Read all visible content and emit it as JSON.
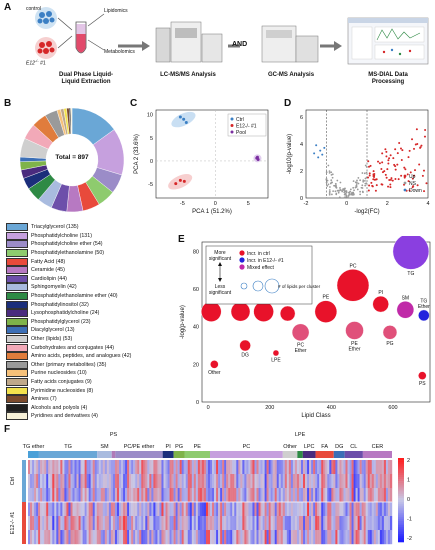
{
  "panelA": {
    "letter": "A",
    "control": "control",
    "mutant": "E12",
    "mutant_sup": "-/-",
    "mutant_suffix": "#1",
    "lipidomics": "Lipidomics",
    "metabolomics": "Metabolomics",
    "step1": "Dual Phase Liquid-Liquid Extraction",
    "step2": "LC-MS/MS Analysis",
    "and": "AND",
    "step3": "GC-MS Analysis",
    "step4": "MS-DIAL Data Processing"
  },
  "panelB": {
    "letter": "B",
    "total": "Total = 897",
    "classes": [
      {
        "label": "Triacylglycerol (135)",
        "count": 135,
        "color": "#6aa7d6"
      },
      {
        "label": "Phosphatidylcholine (131)",
        "count": 131,
        "color": "#c6a0de"
      },
      {
        "label": "Phosphatidylcholine ether (54)",
        "count": 54,
        "color": "#9b8cc8"
      },
      {
        "label": "Phosphatidylethanolamine (50)",
        "count": 50,
        "color": "#8ecb6e"
      },
      {
        "label": "Fatty Acid (48)",
        "count": 48,
        "color": "#e84a3b"
      },
      {
        "label": "Ceramide (45)",
        "count": 45,
        "color": "#b779c2"
      },
      {
        "label": "Cardiolipin (44)",
        "count": 44,
        "color": "#6d4faa"
      },
      {
        "label": "Sphingomyelin (42)",
        "count": 42,
        "color": "#a9bbdf"
      },
      {
        "label": "Phosphatidylethanolamine ether (40)",
        "count": 40,
        "color": "#2e8a45"
      },
      {
        "label": "Phosphatidylinositol (32)",
        "count": 32,
        "color": "#1b2e7a"
      },
      {
        "label": "Lysophosphatidylcholine (24)",
        "count": 24,
        "color": "#4a2b7e"
      },
      {
        "label": "Phosphatidylglycerol (23)",
        "count": 23,
        "color": "#7fb34a"
      },
      {
        "label": "Diacylglycerol (13)",
        "count": 13,
        "color": "#3c6fb6"
      },
      {
        "label": "Other (lipids) (53)",
        "count": 53,
        "color": "#cfcfcf"
      },
      {
        "label": "Carbohydrates and conjugates (44)",
        "count": 44,
        "color": "#f2a9b8"
      },
      {
        "label": "Amino acids, peptides, and analogues (42)",
        "count": 42,
        "color": "#e07c3c"
      },
      {
        "label": "Other (primary metabolites) (35)",
        "count": 35,
        "color": "#9a9a9a"
      },
      {
        "label": "Purine nucleosides (10)",
        "count": 10,
        "color": "#f6c17a"
      },
      {
        "label": "Fatty acids conjugates (9)",
        "count": 9,
        "color": "#bfa88a"
      },
      {
        "label": "Pyrimidine nucleosides (8)",
        "count": 8,
        "color": "#f3e24d"
      },
      {
        "label": "Amines (7)",
        "count": 7,
        "color": "#7b4a2c"
      },
      {
        "label": "Alcohols and polyols (4)",
        "count": 4,
        "color": "#1e1e1e"
      },
      {
        "label": "Pyridines and derivatives (4)",
        "count": 4,
        "color": "#f7f1d8"
      }
    ]
  },
  "panelC": {
    "letter": "C",
    "xlabel": "PCA 1 (51.2%)",
    "ylabel": "PCA 2 (33.6%)",
    "legend": [
      {
        "label": "Ctrl",
        "color": "#3b7fc4"
      },
      {
        "label": "E12-/- #1",
        "color": "#d62728"
      },
      {
        "label": "Pool",
        "color": "#7b2fa0"
      }
    ],
    "xticks": [
      "-5",
      "0",
      "5"
    ],
    "yticks": [
      "10",
      "5",
      "0",
      "-5"
    ],
    "chart_data": {
      "type": "scatter",
      "xlabel": "PCA 1 (51.2%)",
      "ylabel": "PCA 2 (33.6%)",
      "xlim": [
        -9,
        8
      ],
      "ylim": [
        -8,
        11
      ],
      "series": [
        {
          "name": "Ctrl",
          "color": "#3b7fc4",
          "points": [
            [
              -5.3,
              9.5
            ],
            [
              -4.8,
              9.0
            ],
            [
              -4.4,
              8.3
            ]
          ]
        },
        {
          "name": "E12-/- #1",
          "color": "#d62728",
          "points": [
            [
              -6.0,
              -4.9
            ],
            [
              -5.3,
              -4.2
            ],
            [
              -4.7,
              -4.4
            ]
          ]
        },
        {
          "name": "Pool",
          "color": "#7b2fa0",
          "points": [
            [
              6.3,
              0.6
            ],
            [
              6.5,
              0.3
            ],
            [
              6.4,
              0.8
            ]
          ]
        }
      ]
    }
  },
  "panelD": {
    "letter": "D",
    "xlabel": "-log2(FC)",
    "ylabel": "-log10(p-value)",
    "legend": [
      {
        "label": "Up",
        "color": "#d62728"
      },
      {
        "label": "NS",
        "color": "#9a9a9a"
      },
      {
        "label": "Down",
        "color": "#3b7fc4"
      }
    ],
    "xticks": [
      "-2",
      "0",
      "2",
      "4"
    ],
    "yticks": [
      "6",
      "4",
      "2",
      "0"
    ],
    "chart_data": {
      "type": "scatter",
      "xlabel": "-log2(FC)",
      "ylabel": "-log10(p-value)",
      "xlim": [
        -2,
        4
      ],
      "ylim": [
        0,
        6.5
      ],
      "thresholds": {
        "x": [
          -1,
          1
        ]
      }
    }
  },
  "panelE": {
    "letter": "E",
    "xlabel": "Lipid Class",
    "ylabel": "-log(p-value)",
    "more_significant": "More significant",
    "less_significant": "Less significant",
    "legend": [
      {
        "label": "Incr. in ctrl",
        "color": "#e8122a"
      },
      {
        "label": "Incr. in E12-/- #1",
        "color": "#2222dd"
      },
      {
        "label": "Mixed effect",
        "color": "#c02aa8"
      }
    ],
    "size_legend": "# of lipids per cluster",
    "xticks": [
      "0",
      "200",
      "400",
      "600"
    ],
    "yticks": [
      "80",
      "60",
      "40",
      "20",
      "0"
    ],
    "chart_data": {
      "type": "scatter",
      "xlabel": "Lipid Class",
      "ylabel": "-log(p-value)",
      "xlim": [
        -20,
        720
      ],
      "ylim": [
        0,
        85
      ],
      "points": [
        {
          "label": "CER",
          "x": 10,
          "y": 48,
          "size": 18,
          "color": "#e8122a",
          "pos": "top"
        },
        {
          "label": "Other",
          "x": 20,
          "y": 20,
          "size": 6,
          "color": "#e8122a",
          "pos": "bottom"
        },
        {
          "label": "CL",
          "x": 105,
          "y": 48,
          "size": 17,
          "color": "#e8122a",
          "pos": "top"
        },
        {
          "label": "DG",
          "x": 120,
          "y": 30,
          "size": 9,
          "color": "#e8122a",
          "pos": "bottom"
        },
        {
          "label": "FA",
          "x": 180,
          "y": 48,
          "size": 18,
          "color": "#e8122a",
          "pos": "top"
        },
        {
          "label": "LPE",
          "x": 220,
          "y": 26,
          "size": 4,
          "color": "#e8122a",
          "pos": "bottom"
        },
        {
          "label": "LPC",
          "x": 258,
          "y": 47,
          "size": 13,
          "color": "#e8122a",
          "pos": "top"
        },
        {
          "label": "PC Ether",
          "x": 300,
          "y": 37,
          "size": 15,
          "color": "#e0507a",
          "pos": "bottom"
        },
        {
          "label": "PE",
          "x": 382,
          "y": 48,
          "size": 20,
          "color": "#e8122a",
          "pos": "top"
        },
        {
          "label": "PC",
          "x": 470,
          "y": 62,
          "size": 30,
          "color": "#e8122a",
          "pos": "top"
        },
        {
          "label": "PE Ether",
          "x": 475,
          "y": 38,
          "size": 16,
          "color": "#e0507a",
          "pos": "bottom"
        },
        {
          "label": "PI",
          "x": 560,
          "y": 52,
          "size": 14,
          "color": "#e8122a",
          "pos": "top"
        },
        {
          "label": "PG",
          "x": 590,
          "y": 37,
          "size": 12,
          "color": "#e0507a",
          "pos": "bottom"
        },
        {
          "label": "SM",
          "x": 640,
          "y": 49,
          "size": 15,
          "color": "#c02aa8",
          "pos": "top"
        },
        {
          "label": "TG",
          "x": 658,
          "y": 80,
          "size": 34,
          "color": "#8a3fe0",
          "pos": "bottom"
        },
        {
          "label": "TG Ether",
          "x": 700,
          "y": 46,
          "size": 9,
          "color": "#2222dd",
          "pos": "top"
        },
        {
          "label": "PS",
          "x": 695,
          "y": 14,
          "size": 6,
          "color": "#e8122a",
          "pos": "bottom"
        }
      ]
    }
  },
  "panelF": {
    "letter": "F",
    "rows": [
      "Ctrl",
      "E12-/- #1"
    ],
    "scale": [
      "2",
      "1",
      "0",
      "-1",
      "-2"
    ],
    "groups_top": [
      {
        "label": "TG ether",
        "start": 0.0,
        "end": 0.03,
        "color": "#4aa0d8"
      },
      {
        "label": "TG",
        "start": 0.03,
        "end": 0.19,
        "color": "#6aa7d6"
      },
      {
        "label": "SM",
        "start": 0.19,
        "end": 0.23,
        "color": "#a9bbdf"
      },
      {
        "label": "PS",
        "start": 0.23,
        "end": 0.24,
        "color": "#b07ab8"
      },
      {
        "label": "PC/PE ether",
        "start": 0.24,
        "end": 0.37,
        "color": "#9b8cc8"
      },
      {
        "label": "PI",
        "start": 0.37,
        "end": 0.4,
        "color": "#1b2e7a"
      },
      {
        "label": "PG",
        "start": 0.4,
        "end": 0.43,
        "color": "#7fb34a"
      },
      {
        "label": "PE",
        "start": 0.43,
        "end": 0.5,
        "color": "#8ecb6e"
      },
      {
        "label": "PC",
        "start": 0.5,
        "end": 0.7,
        "color": "#c6a0de"
      },
      {
        "label": "Other",
        "start": 0.7,
        "end": 0.74,
        "color": "#cfcfcf"
      },
      {
        "label": "LPE",
        "start": 0.74,
        "end": 0.755,
        "color": "#2e8a45"
      },
      {
        "label": "LPC",
        "start": 0.755,
        "end": 0.79,
        "color": "#4a2b7e"
      },
      {
        "label": "FA",
        "start": 0.79,
        "end": 0.84,
        "color": "#e84a3b"
      },
      {
        "label": "DG",
        "start": 0.84,
        "end": 0.87,
        "color": "#3c6fb6"
      },
      {
        "label": "CL",
        "start": 0.87,
        "end": 0.92,
        "color": "#6d4faa"
      },
      {
        "label": "CER",
        "start": 0.92,
        "end": 1.0,
        "color": "#b779c2"
      }
    ],
    "chart_data": {
      "type": "heatmap",
      "rows": [
        "Ctrl",
        "E12-/- #1"
      ],
      "scale": [
        -2,
        2
      ]
    }
  }
}
